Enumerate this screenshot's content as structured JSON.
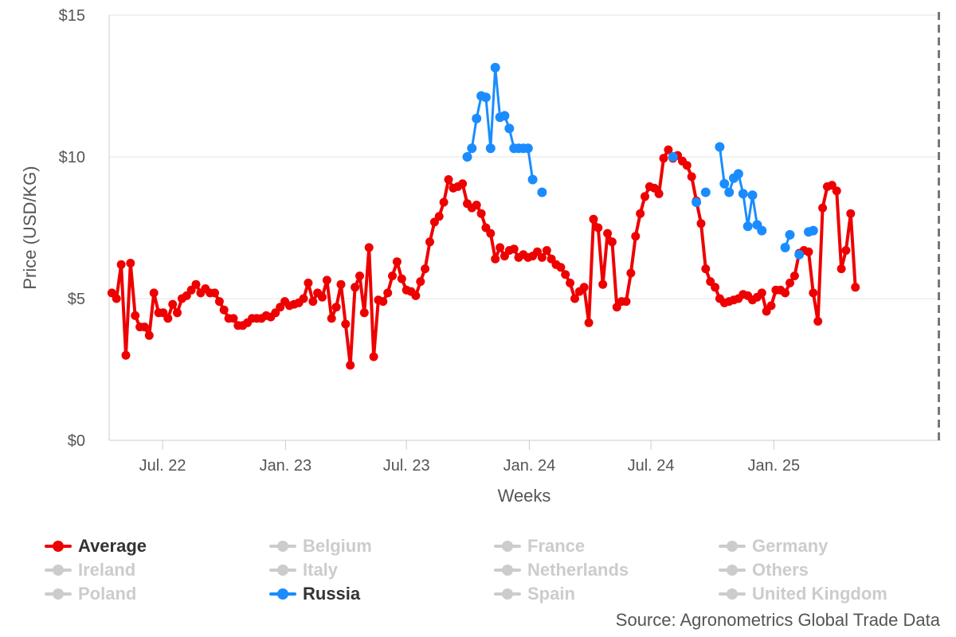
{
  "chart_data": {
    "type": "line",
    "xlabel": "Weeks",
    "ylabel": "Price (USD/KG)",
    "ylim": [
      0,
      15
    ],
    "yticks": [
      0,
      5,
      10,
      15
    ],
    "ytick_labels": [
      "$0",
      "$5",
      "$10",
      "$15"
    ],
    "xlim": [
      "2022-04-12",
      "2025-09-08"
    ],
    "xticks": [
      "2022-07-01",
      "2023-01-01",
      "2023-07-01",
      "2024-01-01",
      "2024-07-01",
      "2025-01-01"
    ],
    "xtick_labels": [
      "Jul. 22",
      "Jan. 23",
      "Jul. 23",
      "Jan. 24",
      "Jul. 24",
      "Jan. 25"
    ],
    "grid": "horizontal",
    "marker_line": "2025-09-05",
    "legend_position": "bottom",
    "series": [
      {
        "name": "Average",
        "color": "#ee0000",
        "active": true,
        "points": [
          [
            "2022-04-16",
            5.2
          ],
          [
            "2022-04-23",
            5.0
          ],
          [
            "2022-04-30",
            6.2
          ],
          [
            "2022-05-07",
            3.0
          ],
          [
            "2022-05-14",
            6.25
          ],
          [
            "2022-05-21",
            4.4
          ],
          [
            "2022-05-28",
            4.0
          ],
          [
            "2022-06-04",
            4.0
          ],
          [
            "2022-06-11",
            3.7
          ],
          [
            "2022-06-18",
            5.2
          ],
          [
            "2022-06-25",
            4.5
          ],
          [
            "2022-07-02",
            4.5
          ],
          [
            "2022-07-09",
            4.3
          ],
          [
            "2022-07-16",
            4.8
          ],
          [
            "2022-07-23",
            4.5
          ],
          [
            "2022-07-30",
            5.0
          ],
          [
            "2022-08-06",
            5.1
          ],
          [
            "2022-08-13",
            5.3
          ],
          [
            "2022-08-20",
            5.5
          ],
          [
            "2022-08-27",
            5.2
          ],
          [
            "2022-09-03",
            5.35
          ],
          [
            "2022-09-10",
            5.2
          ],
          [
            "2022-09-17",
            5.2
          ],
          [
            "2022-09-24",
            4.9
          ],
          [
            "2022-10-01",
            4.6
          ],
          [
            "2022-10-08",
            4.3
          ],
          [
            "2022-10-15",
            4.3
          ],
          [
            "2022-10-22",
            4.05
          ],
          [
            "2022-10-29",
            4.05
          ],
          [
            "2022-11-05",
            4.15
          ],
          [
            "2022-11-12",
            4.3
          ],
          [
            "2022-11-19",
            4.3
          ],
          [
            "2022-11-26",
            4.3
          ],
          [
            "2022-12-03",
            4.4
          ],
          [
            "2022-12-10",
            4.35
          ],
          [
            "2022-12-17",
            4.5
          ],
          [
            "2022-12-24",
            4.7
          ],
          [
            "2022-12-31",
            4.9
          ],
          [
            "2023-01-07",
            4.75
          ],
          [
            "2023-01-14",
            4.8
          ],
          [
            "2023-01-21",
            4.85
          ],
          [
            "2023-01-28",
            5.0
          ],
          [
            "2023-02-04",
            5.55
          ],
          [
            "2023-02-11",
            4.9
          ],
          [
            "2023-02-18",
            5.2
          ],
          [
            "2023-02-25",
            5.05
          ],
          [
            "2023-03-04",
            5.65
          ],
          [
            "2023-03-11",
            4.3
          ],
          [
            "2023-03-18",
            4.7
          ],
          [
            "2023-03-25",
            5.5
          ],
          [
            "2023-04-01",
            4.1
          ],
          [
            "2023-04-08",
            2.65
          ],
          [
            "2023-04-15",
            5.4
          ],
          [
            "2023-04-22",
            5.8
          ],
          [
            "2023-04-29",
            4.5
          ],
          [
            "2023-05-06",
            6.8
          ],
          [
            "2023-05-13",
            2.95
          ],
          [
            "2023-05-20",
            4.95
          ],
          [
            "2023-05-27",
            4.9
          ],
          [
            "2023-06-03",
            5.2
          ],
          [
            "2023-06-10",
            5.8
          ],
          [
            "2023-06-17",
            6.3
          ],
          [
            "2023-06-24",
            5.7
          ],
          [
            "2023-07-01",
            5.3
          ],
          [
            "2023-07-08",
            5.25
          ],
          [
            "2023-07-15",
            5.1
          ],
          [
            "2023-07-22",
            5.6
          ],
          [
            "2023-07-29",
            6.05
          ],
          [
            "2023-08-05",
            7.0
          ],
          [
            "2023-08-12",
            7.7
          ],
          [
            "2023-08-19",
            7.9
          ],
          [
            "2023-08-26",
            8.4
          ],
          [
            "2023-09-02",
            9.2
          ],
          [
            "2023-09-09",
            8.9
          ],
          [
            "2023-09-16",
            8.95
          ],
          [
            "2023-09-23",
            9.05
          ],
          [
            "2023-09-30",
            8.35
          ],
          [
            "2023-10-07",
            8.2
          ],
          [
            "2023-10-14",
            8.3
          ],
          [
            "2023-10-21",
            8.0
          ],
          [
            "2023-10-28",
            7.5
          ],
          [
            "2023-11-04",
            7.3
          ],
          [
            "2023-11-11",
            6.4
          ],
          [
            "2023-11-18",
            6.8
          ],
          [
            "2023-11-25",
            6.5
          ],
          [
            "2023-12-02",
            6.7
          ],
          [
            "2023-12-09",
            6.75
          ],
          [
            "2023-12-16",
            6.45
          ],
          [
            "2023-12-23",
            6.55
          ],
          [
            "2023-12-30",
            6.45
          ],
          [
            "2024-01-06",
            6.5
          ],
          [
            "2024-01-13",
            6.65
          ],
          [
            "2024-01-20",
            6.45
          ],
          [
            "2024-01-27",
            6.7
          ],
          [
            "2024-02-03",
            6.4
          ],
          [
            "2024-02-10",
            6.2
          ],
          [
            "2024-02-17",
            6.1
          ],
          [
            "2024-02-24",
            5.85
          ],
          [
            "2024-03-02",
            5.55
          ],
          [
            "2024-03-09",
            5.0
          ],
          [
            "2024-03-16",
            5.25
          ],
          [
            "2024-03-23",
            5.4
          ],
          [
            "2024-03-30",
            4.15
          ],
          [
            "2024-04-06",
            7.8
          ],
          [
            "2024-04-13",
            7.5
          ],
          [
            "2024-04-20",
            5.5
          ],
          [
            "2024-04-27",
            7.3
          ],
          [
            "2024-05-04",
            7.0
          ],
          [
            "2024-05-11",
            4.7
          ],
          [
            "2024-05-18",
            4.9
          ],
          [
            "2024-05-25",
            4.9
          ],
          [
            "2024-06-01",
            5.9
          ],
          [
            "2024-06-08",
            7.2
          ],
          [
            "2024-06-15",
            8.0
          ],
          [
            "2024-06-22",
            8.6
          ],
          [
            "2024-06-29",
            8.95
          ],
          [
            "2024-07-06",
            8.9
          ],
          [
            "2024-07-13",
            8.7
          ],
          [
            "2024-07-20",
            9.95
          ],
          [
            "2024-07-27",
            10.25
          ],
          [
            "2024-08-03",
            9.95
          ],
          [
            "2024-08-10",
            10.05
          ],
          [
            "2024-08-17",
            9.85
          ],
          [
            "2024-08-24",
            9.7
          ],
          [
            "2024-08-31",
            9.3
          ],
          [
            "2024-09-07",
            8.45
          ],
          [
            "2024-09-14",
            7.65
          ],
          [
            "2024-09-21",
            6.05
          ],
          [
            "2024-09-28",
            5.6
          ],
          [
            "2024-10-05",
            5.4
          ],
          [
            "2024-10-12",
            5.0
          ],
          [
            "2024-10-19",
            4.85
          ],
          [
            "2024-10-26",
            4.9
          ],
          [
            "2024-11-02",
            4.95
          ],
          [
            "2024-11-09",
            5.0
          ],
          [
            "2024-11-16",
            5.15
          ],
          [
            "2024-11-23",
            5.1
          ],
          [
            "2024-11-30",
            4.95
          ],
          [
            "2024-12-07",
            5.05
          ],
          [
            "2024-12-14",
            5.2
          ],
          [
            "2024-12-21",
            4.55
          ],
          [
            "2024-12-28",
            4.75
          ],
          [
            "2025-01-04",
            5.3
          ],
          [
            "2025-01-11",
            5.3
          ],
          [
            "2025-01-18",
            5.2
          ],
          [
            "2025-01-25",
            5.55
          ],
          [
            "2025-02-01",
            5.8
          ],
          [
            "2025-02-08",
            6.6
          ],
          [
            "2025-02-15",
            6.7
          ],
          [
            "2025-02-22",
            6.65
          ],
          [
            "2025-03-01",
            5.2
          ],
          [
            "2025-03-08",
            4.2
          ],
          [
            "2025-03-15",
            8.2
          ],
          [
            "2025-03-22",
            8.95
          ],
          [
            "2025-03-29",
            9.0
          ],
          [
            "2025-04-05",
            8.8
          ],
          [
            "2025-04-12",
            6.05
          ],
          [
            "2025-04-19",
            6.7
          ],
          [
            "2025-04-26",
            8.0
          ],
          [
            "2025-05-03",
            5.4
          ]
        ]
      },
      {
        "name": "Russia",
        "color": "#1a8cff",
        "active": true,
        "segments": [
          [
            [
              "2023-09-30",
              10.0
            ],
            [
              "2023-10-07",
              10.3
            ],
            [
              "2023-10-14",
              11.35
            ],
            [
              "2023-10-21",
              12.15
            ],
            [
              "2023-10-28",
              12.1
            ],
            [
              "2023-11-04",
              10.3
            ],
            [
              "2023-11-11",
              13.15
            ],
            [
              "2023-11-18",
              11.4
            ],
            [
              "2023-11-25",
              11.45
            ],
            [
              "2023-12-02",
              11.0
            ],
            [
              "2023-12-09",
              10.3
            ],
            [
              "2023-12-16",
              10.3
            ],
            [
              "2023-12-23",
              10.3
            ],
            [
              "2023-12-30",
              10.3
            ],
            [
              "2024-01-06",
              9.2
            ]
          ],
          [
            [
              "2024-01-20",
              8.75
            ]
          ],
          [
            [
              "2024-08-03",
              10.0
            ]
          ],
          [
            [
              "2024-09-07",
              8.4
            ]
          ],
          [
            [
              "2024-09-21",
              8.75
            ]
          ],
          [
            [
              "2024-10-12",
              10.35
            ],
            [
              "2024-10-19",
              9.05
            ],
            [
              "2024-10-26",
              8.75
            ],
            [
              "2024-11-02",
              9.25
            ],
            [
              "2024-11-09",
              9.4
            ],
            [
              "2024-11-16",
              8.7
            ],
            [
              "2024-11-23",
              7.55
            ],
            [
              "2024-11-30",
              8.65
            ],
            [
              "2024-12-07",
              7.6
            ],
            [
              "2024-12-14",
              7.4
            ]
          ],
          [
            [
              "2025-01-18",
              6.8
            ],
            [
              "2025-01-25",
              7.25
            ]
          ],
          [
            [
              "2025-02-08",
              6.55
            ]
          ],
          [
            [
              "2025-02-22",
              7.35
            ],
            [
              "2025-03-01",
              7.4
            ]
          ]
        ]
      }
    ]
  },
  "legend": [
    [
      {
        "label": "Average",
        "active": true,
        "color": "#ee0000"
      },
      {
        "label": "Belgium",
        "active": false,
        "color": "#cccccc"
      },
      {
        "label": "France",
        "active": false,
        "color": "#cccccc"
      },
      {
        "label": "Germany",
        "active": false,
        "color": "#cccccc"
      }
    ],
    [
      {
        "label": "Ireland",
        "active": false,
        "color": "#cccccc"
      },
      {
        "label": "Italy",
        "active": false,
        "color": "#cccccc"
      },
      {
        "label": "Netherlands",
        "active": false,
        "color": "#cccccc"
      },
      {
        "label": "Others",
        "active": false,
        "color": "#cccccc"
      }
    ],
    [
      {
        "label": "Poland",
        "active": false,
        "color": "#cccccc"
      },
      {
        "label": "Russia",
        "active": true,
        "color": "#1a8cff"
      },
      {
        "label": "Spain",
        "active": false,
        "color": "#cccccc"
      },
      {
        "label": "United Kingdom",
        "active": false,
        "color": "#cccccc"
      }
    ]
  ],
  "source_text": "Source: Agronometrics Global Trade Data"
}
